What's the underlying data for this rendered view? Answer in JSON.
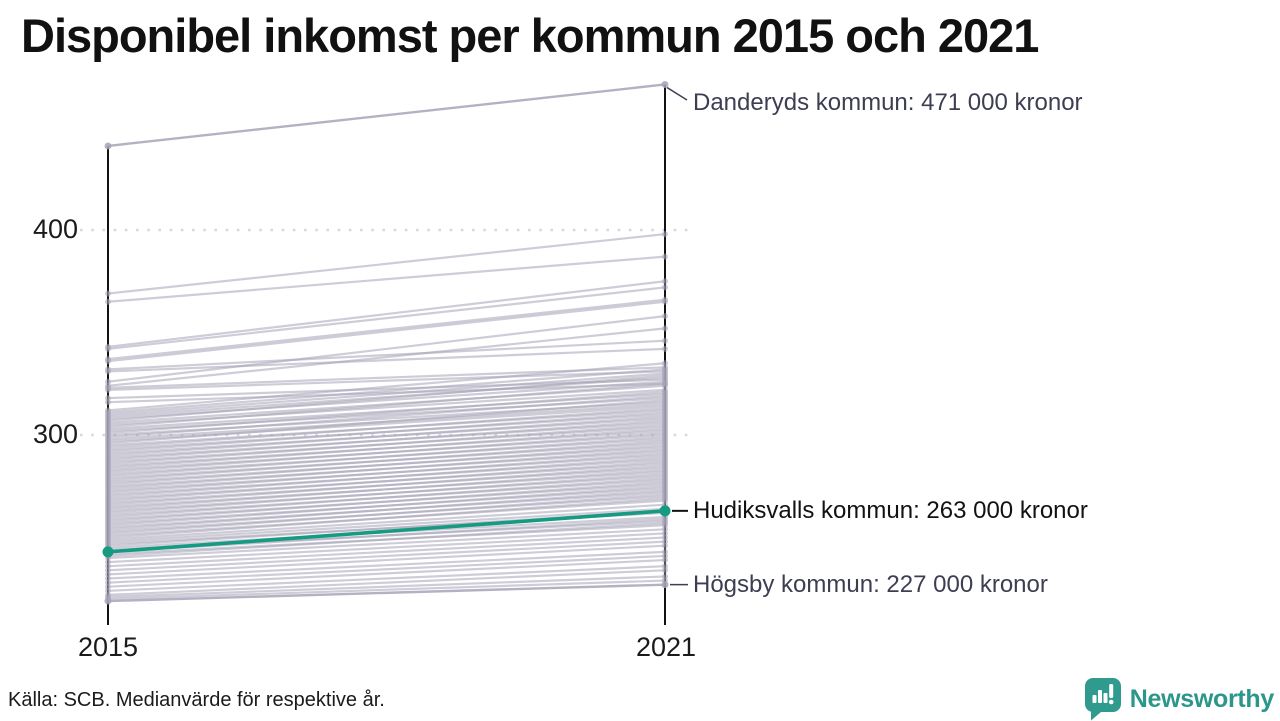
{
  "title": "Disponibel inkomst per kommun 2015 och 2021",
  "footer": {
    "source": "Källa: SCB. Medianvärde för respektive år."
  },
  "logo": {
    "text": "Newsworthy",
    "color": "#2b968a"
  },
  "colors": {
    "accent_teal": "#169a82",
    "line_gray": "#a7a4b8",
    "axis": "#121212",
    "grid": "#d8d7de",
    "annotation_text": "#3e3e52",
    "annotation_text_dark": "#121212"
  },
  "chart_data": {
    "type": "line",
    "subtype": "slope",
    "x_labels": [
      "2015",
      "2021"
    ],
    "y_axis_ticks": [
      {
        "label": "400",
        "value": 400
      },
      {
        "label": "300",
        "value": 300
      }
    ],
    "ylim": [
      213,
      480
    ],
    "unit": "kronor",
    "value_scale": 1000,
    "grid": true,
    "highlight": {
      "name": "Hudiksvalls kommun",
      "label": "Hudiksvalls kommun: 263 000 kronor",
      "values": [
        243,
        263
      ],
      "color": "#169a82"
    },
    "annotations": [
      {
        "name": "Danderyds kommun",
        "label": "Danderyds kommun: 471 000 kronor",
        "values": [
          441,
          471
        ]
      },
      {
        "name": "Högsby kommun",
        "label": "Högsby kommun: 227 000 kronor",
        "values": [
          219,
          227
        ]
      }
    ],
    "background_series": [
      [
        369,
        398
      ],
      [
        365,
        387
      ],
      [
        343,
        375
      ],
      [
        342,
        372
      ],
      [
        337,
        366
      ],
      [
        336,
        365
      ],
      [
        332,
        346
      ],
      [
        331,
        342
      ],
      [
        326,
        358
      ],
      [
        324,
        352
      ],
      [
        323,
        333
      ],
      [
        322,
        331
      ],
      [
        318,
        327
      ],
      [
        316,
        325
      ],
      [
        312,
        335
      ],
      [
        311,
        332
      ],
      [
        310,
        330
      ],
      [
        309,
        328
      ],
      [
        308,
        326
      ],
      [
        307,
        329
      ],
      [
        306,
        324
      ],
      [
        305,
        322
      ],
      [
        304,
        325
      ],
      [
        303,
        320
      ],
      [
        302,
        318
      ],
      [
        301,
        321
      ],
      [
        300,
        316
      ],
      [
        299,
        319
      ],
      [
        298,
        315
      ],
      [
        297,
        314
      ],
      [
        296,
        317
      ],
      [
        295,
        312
      ],
      [
        294,
        313
      ],
      [
        293,
        310
      ],
      [
        292,
        311
      ],
      [
        291,
        308
      ],
      [
        290,
        309
      ],
      [
        289,
        306
      ],
      [
        288,
        307
      ],
      [
        287,
        304
      ],
      [
        286,
        305
      ],
      [
        285,
        302
      ],
      [
        284,
        303
      ],
      [
        283,
        300
      ],
      [
        282,
        301
      ],
      [
        281,
        298
      ],
      [
        280,
        299
      ],
      [
        279,
        296
      ],
      [
        278,
        297
      ],
      [
        277,
        294
      ],
      [
        276,
        295
      ],
      [
        275,
        292
      ],
      [
        274,
        293
      ],
      [
        273,
        290
      ],
      [
        272,
        291
      ],
      [
        271,
        288
      ],
      [
        270,
        289
      ],
      [
        269,
        286
      ],
      [
        268,
        287
      ],
      [
        267,
        284
      ],
      [
        266,
        285
      ],
      [
        265,
        282
      ],
      [
        264,
        283
      ],
      [
        263,
        280
      ],
      [
        262,
        281
      ],
      [
        261,
        278
      ],
      [
        260,
        279
      ],
      [
        259,
        276
      ],
      [
        258,
        277
      ],
      [
        257,
        274
      ],
      [
        256,
        275
      ],
      [
        255,
        272
      ],
      [
        254,
        273
      ],
      [
        253,
        270
      ],
      [
        252,
        271
      ],
      [
        251,
        268
      ],
      [
        250,
        269
      ],
      [
        249,
        266
      ],
      [
        248,
        264
      ],
      [
        247,
        262
      ],
      [
        246,
        263
      ],
      [
        245,
        260
      ],
      [
        244,
        258
      ],
      [
        243,
        259
      ],
      [
        242,
        256
      ],
      [
        241,
        257
      ],
      [
        240,
        254
      ],
      [
        238,
        252
      ],
      [
        236,
        250
      ],
      [
        234,
        248
      ],
      [
        232,
        246
      ],
      [
        230,
        243
      ],
      [
        228,
        241
      ],
      [
        226,
        239
      ],
      [
        224,
        236
      ],
      [
        222,
        234
      ],
      [
        221,
        231
      ],
      [
        220,
        229
      ]
    ]
  }
}
